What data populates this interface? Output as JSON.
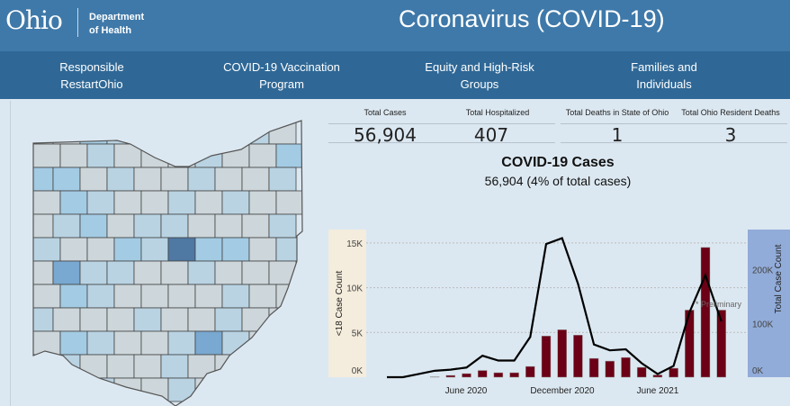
{
  "header": {
    "logo": "Ohio",
    "dept_line1": "Department",
    "dept_line2": "of Health",
    "title": "Coronavirus (COVID-19)"
  },
  "nav": [
    {
      "line1": "Responsible",
      "line2": "RestartOhio"
    },
    {
      "line1": "COVID-19 Vaccination",
      "line2": "Program"
    },
    {
      "line1": "Equity and High-Risk",
      "line2": "Groups"
    },
    {
      "line1": "Families and",
      "line2": "Individuals"
    }
  ],
  "stats": [
    {
      "label": "Total Cases",
      "value": "56,904"
    },
    {
      "label": "Total Hospitalized",
      "value": "407"
    },
    {
      "label": "Total Deaths in State of Ohio",
      "value": "1"
    },
    {
      "label": "Total Ohio Resident Deaths",
      "value": "3"
    }
  ],
  "chart_title": "COVID-19 Cases",
  "chart_subtitle": "56,904 (4% of total cases)",
  "colors": {
    "header": "#3f79a9",
    "nav": "#2f6896",
    "bar": "#6b0016",
    "line": "#000000",
    "left_axis_bg": "#f4ecdc",
    "right_axis_bg": "#92acd9"
  },
  "map": {
    "shade_levels": [
      0,
      0,
      2,
      1,
      0,
      0,
      1,
      3,
      1,
      0,
      0,
      0,
      1,
      0,
      0,
      0,
      1,
      0,
      0,
      2,
      2,
      2,
      0,
      1,
      0,
      0,
      1,
      0,
      0,
      1,
      0,
      2,
      1,
      0,
      0,
      1,
      0,
      1,
      0,
      0,
      0,
      1,
      2,
      0,
      1,
      1,
      0,
      0,
      0,
      1,
      1,
      0,
      0,
      2,
      1,
      4,
      2,
      2,
      0,
      1,
      0,
      3,
      1,
      1,
      0,
      0,
      1,
      0,
      0,
      0,
      0,
      2,
      1,
      0,
      0,
      0,
      0,
      1,
      0,
      0,
      1,
      0,
      0,
      0,
      1,
      0,
      0,
      1,
      0
    ]
  },
  "chart_data": {
    "type": "bar+line",
    "title": "COVID-19 Cases",
    "annotation": "* Preliminary",
    "x_ticks": [
      "June 2020",
      "December 2020",
      "June 2021"
    ],
    "left_axis": {
      "label": "<18 Case Count",
      "ticks": [
        "0K",
        "5K",
        "10K",
        "15K"
      ],
      "range": [
        0,
        16500
      ]
    },
    "right_axis": {
      "label": "Total Case Count",
      "ticks": [
        "0K",
        "100K",
        "200K"
      ],
      "range": [
        0,
        275000
      ]
    },
    "months": [
      "2020-01",
      "2020-02",
      "2020-03",
      "2020-04",
      "2020-05",
      "2020-06",
      "2020-07",
      "2020-08",
      "2020-09",
      "2020-10",
      "2020-11",
      "2020-12",
      "2021-01",
      "2021-02",
      "2021-03",
      "2021-04",
      "2021-05",
      "2021-06",
      "2021-07",
      "2021-08",
      "2021-09",
      "2021-10"
    ],
    "series": [
      {
        "name": "<18 Case Count",
        "type": "bar",
        "axis": "left",
        "values": [
          null,
          null,
          null,
          50,
          200,
          400,
          750,
          500,
          500,
          1200,
          4600,
          5300,
          4700,
          2100,
          1800,
          2200,
          1100,
          250,
          1000,
          7500,
          14500,
          7500
        ]
      },
      {
        "name": "Total Case Count",
        "type": "line",
        "axis": "right",
        "values": [
          0,
          0,
          6000,
          12000,
          14000,
          18000,
          40000,
          31000,
          31000,
          75000,
          248000,
          259000,
          174000,
          61000,
          50000,
          52000,
          26000,
          6000,
          21000,
          121000,
          190000,
          104000
        ]
      }
    ]
  }
}
